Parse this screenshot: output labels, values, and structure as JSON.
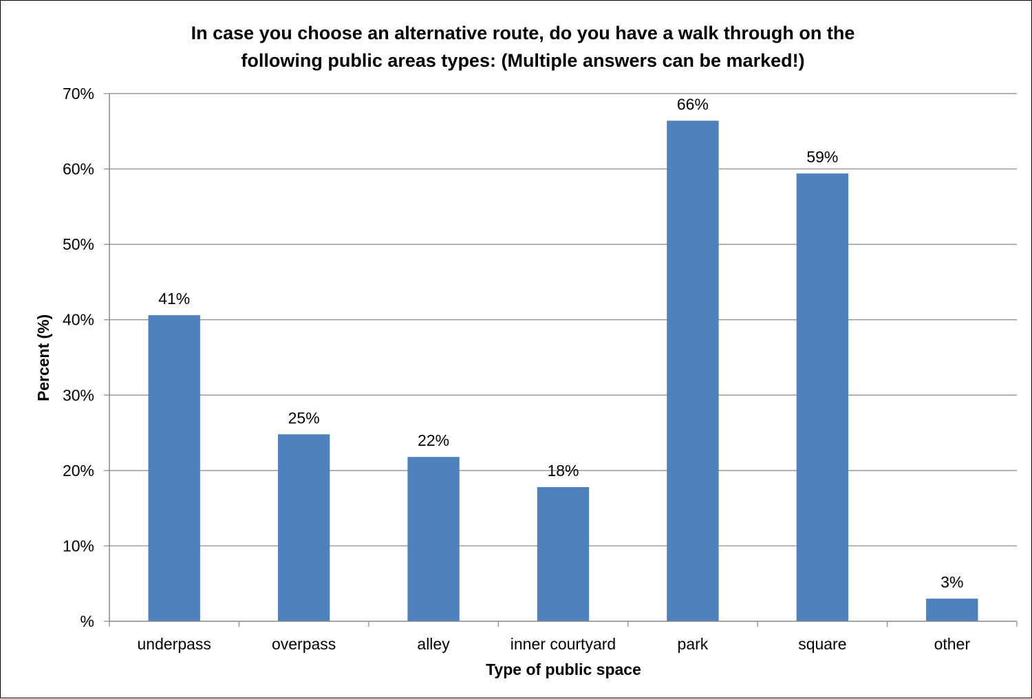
{
  "chart_data": {
    "type": "bar",
    "title": "In case you choose an alternative route, do you have a walk through on the following public areas types: (Multiple answers can be marked!)",
    "title_lines": [
      "In case you choose an alternative route, do you have a walk through on the",
      "following public areas types: (Multiple answers can be marked!)"
    ],
    "xlabel": "Type of public space",
    "ylabel": "Percent (%)",
    "categories": [
      "underpass",
      "overpass",
      "alley",
      "inner courtyard",
      "park",
      "square",
      "other"
    ],
    "values": [
      40.6,
      24.8,
      21.8,
      17.8,
      66.4,
      59.4,
      3.0
    ],
    "data_labels": [
      "41%",
      "25%",
      "22%",
      "18%",
      "66%",
      "59%",
      "3%"
    ],
    "ylim": [
      0,
      70
    ],
    "yticks": [
      0,
      10,
      20,
      30,
      40,
      50,
      60,
      70
    ],
    "ytick_labels": [
      "%",
      "10%",
      "20%",
      "30%",
      "40%",
      "50%",
      "60%",
      "70%"
    ],
    "grid": true,
    "legend": "none",
    "bar_color": "#4F81BD",
    "grid_color": "#868686"
  }
}
